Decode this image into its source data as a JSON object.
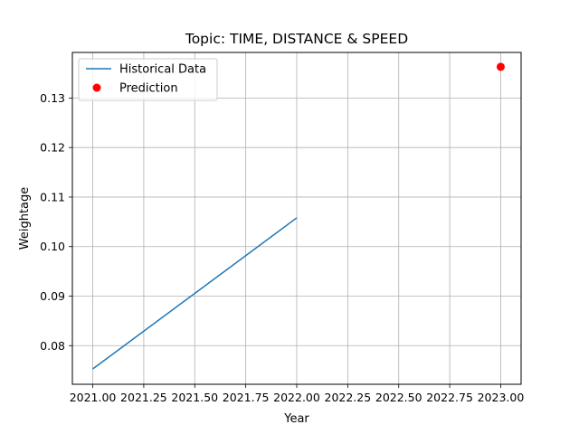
{
  "chart_data": {
    "type": "line",
    "title": "Topic: TIME, DISTANCE & SPEED",
    "xlabel": "Year",
    "ylabel": "Weightage",
    "xlim": [
      2020.9,
      2023.1
    ],
    "ylim": [
      0.0722,
      0.1392
    ],
    "x_ticks": [
      2021.0,
      2021.25,
      2021.5,
      2021.75,
      2022.0,
      2022.25,
      2022.5,
      2022.75,
      2023.0
    ],
    "x_tick_labels": [
      "2021.00",
      "2021.25",
      "2021.50",
      "2021.75",
      "2022.00",
      "2022.25",
      "2022.50",
      "2022.75",
      "2023.00"
    ],
    "y_ticks": [
      0.08,
      0.09,
      0.1,
      0.11,
      0.12,
      0.13
    ],
    "y_tick_labels": [
      "0.08",
      "0.09",
      "0.10",
      "0.11",
      "0.12",
      "0.13"
    ],
    "grid": true,
    "legend": {
      "position": "top-left",
      "entries": [
        "Historical Data",
        "Prediction"
      ]
    },
    "series": [
      {
        "name": "Historical Data",
        "kind": "line",
        "color": "#1f77b4",
        "x": [
          2021,
          2022
        ],
        "y": [
          0.0753,
          0.1058
        ]
      },
      {
        "name": "Prediction",
        "kind": "scatter",
        "color": "#ff0000",
        "x": [
          2023
        ],
        "y": [
          0.1363
        ]
      }
    ]
  }
}
